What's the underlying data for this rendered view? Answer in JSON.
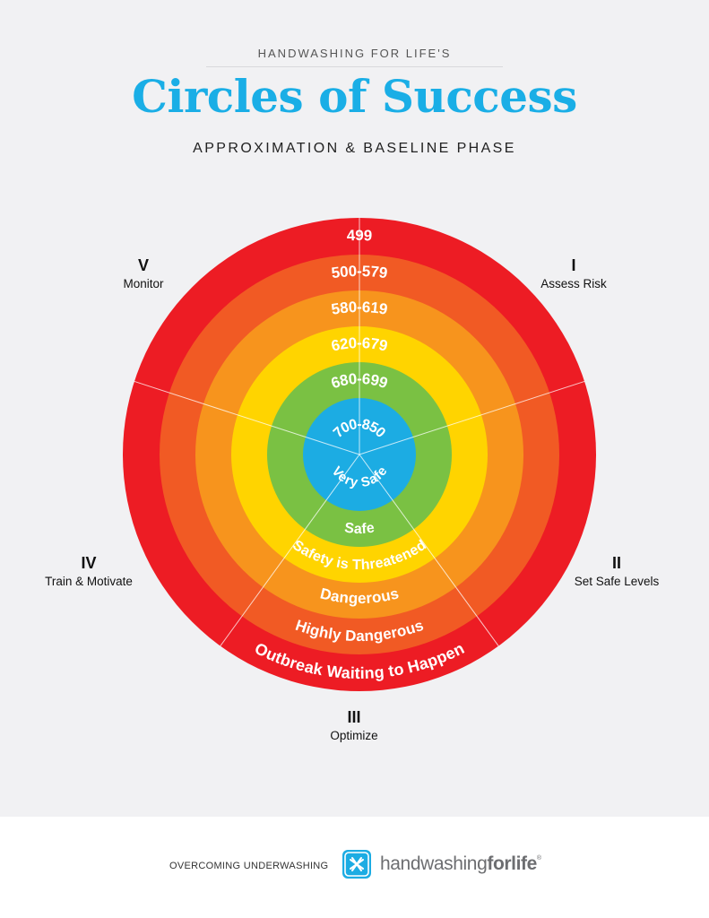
{
  "header": {
    "eyebrow": "HANDWASHING FOR LIFE'S",
    "title": "Circles of Success",
    "subtitle": "APPROXIMATION & BASELINE PHASE"
  },
  "rings": [
    {
      "range": "499",
      "label": "Outbreak Waiting to Happen",
      "color": "#ed1c24"
    },
    {
      "range": "500-579",
      "label": "Highly Dangerous",
      "color": "#f15a24"
    },
    {
      "range": "580-619",
      "label": "Dangerous",
      "color": "#f7941d"
    },
    {
      "range": "620-679",
      "label": "Safety is Threatened",
      "color": "#ffd400"
    },
    {
      "range": "680-699",
      "label": "Safe",
      "color": "#7ac143"
    },
    {
      "range": "700-850",
      "label": "Very Safe",
      "color": "#1cace3"
    }
  ],
  "stages": [
    {
      "numeral": "I",
      "name": "Assess Risk"
    },
    {
      "numeral": "II",
      "name": "Set Safe Levels"
    },
    {
      "numeral": "III",
      "name": "Optimize"
    },
    {
      "numeral": "IV",
      "name": "Train & Motivate"
    },
    {
      "numeral": "V",
      "name": "Monitor"
    }
  ],
  "footer": {
    "tagline": "OVERCOMING UNDERWASHING",
    "brand_light": "handwashing",
    "brand_bold": "forlife",
    "brand_mark": "®"
  },
  "icons": {
    "logo": "hands-logo-icon"
  }
}
